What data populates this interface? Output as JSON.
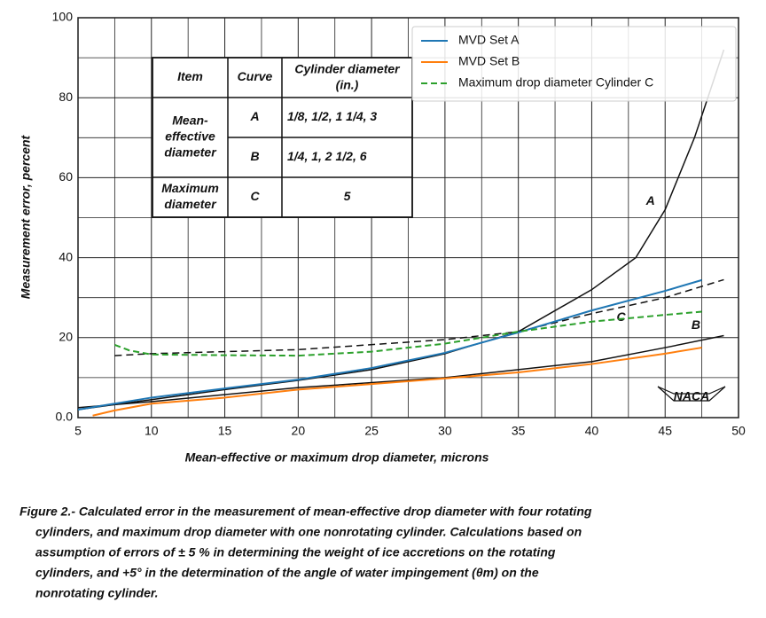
{
  "chart_data": {
    "type": "line",
    "xlabel": "Mean-effective or maximum drop diameter, microns",
    "ylabel": "Measurement error, percent",
    "xlim": [
      5,
      50
    ],
    "xticks": [
      5,
      10,
      15,
      20,
      25,
      30,
      35,
      40,
      45,
      50
    ],
    "ylim": [
      0,
      100
    ],
    "yticks": [
      {
        "value": 0,
        "label": "0.0"
      },
      20,
      40,
      60,
      80,
      100
    ],
    "grid": true,
    "legend": "upper right",
    "series": [
      {
        "name": "MVD Set A",
        "color": "#1f77b4",
        "style": "solid",
        "x": [
          5,
          7.5,
          10,
          15,
          20,
          25,
          30,
          35,
          40,
          45,
          47.5
        ],
        "values": [
          2,
          3.5,
          5,
          7.3,
          9.5,
          12.4,
          16.2,
          21.3,
          26.8,
          31.7,
          34.4
        ]
      },
      {
        "name": "MVD Set B",
        "color": "#ff7f0e",
        "style": "solid",
        "x": [
          6,
          7.5,
          10,
          15,
          20,
          25,
          30,
          35,
          40,
          45,
          47.5
        ],
        "values": [
          0.5,
          1.8,
          3.5,
          5,
          7,
          8.4,
          9.8,
          11.3,
          13.4,
          16,
          17.5
        ]
      },
      {
        "name": "Maximum drop diameter Cylinder C",
        "color": "#2ca02c",
        "style": "dashed",
        "x": [
          7.5,
          8.5,
          10,
          15,
          20,
          25,
          30,
          35,
          40,
          45,
          47.5
        ],
        "values": [
          18.2,
          16.8,
          15.8,
          15.6,
          15.5,
          16.5,
          18.5,
          21.5,
          24,
          25.7,
          26.5
        ]
      }
    ],
    "curves": [
      {
        "label": "A",
        "label_x": 44,
        "label_y": 54,
        "style": "solid",
        "x": [
          5,
          10,
          15,
          20,
          25,
          30,
          35,
          40,
          43,
          45,
          47,
          49
        ],
        "values": [
          2,
          4.5,
          7,
          9.3,
          12,
          16,
          21.5,
          32,
          40,
          52,
          70,
          92
        ]
      },
      {
        "label": "B",
        "label_x": 47.1,
        "label_y": 23,
        "style": "solid",
        "x": [
          5,
          10,
          20,
          30,
          40,
          45,
          49
        ],
        "values": [
          2.5,
          4,
          7.5,
          10,
          14,
          17.5,
          20.5
        ]
      },
      {
        "label": "C",
        "label_x": 42,
        "label_y": 25,
        "style": "dashed",
        "x": [
          7.5,
          10,
          20,
          30,
          35,
          40,
          45,
          49
        ],
        "values": [
          15.5,
          16,
          17,
          19.5,
          21.5,
          26,
          30,
          34.5
        ]
      }
    ],
    "inset_table": {
      "headers": [
        "Item",
        "Curve",
        [
          "Cylinder diameter",
          "(in.)"
        ]
      ],
      "groups": [
        {
          "item": [
            "Mean-",
            "effective",
            "diameter"
          ],
          "rows": [
            [
              "A",
              "1/8, 1/2, 1 1/4, 3"
            ],
            [
              "B",
              "1/4, 1, 2 1/2, 6"
            ]
          ]
        },
        {
          "item": [
            "Maximum",
            "diameter"
          ],
          "rows": [
            [
              "C",
              "5"
            ]
          ]
        }
      ]
    },
    "logo": "NACA",
    "caption": [
      "Figure 2.- Calculated error in the measurement of mean-effective drop diameter with four rotating",
      "cylinders, and maximum drop diameter with one nonrotating cylinder. Calculations based on",
      "assumption of errors of ± 5 % in determining the weight of ice accretions on the rotating",
      "cylinders, and +5° in the determination of the angle of water impingement (θm) on the",
      "nonrotating cylinder."
    ]
  }
}
